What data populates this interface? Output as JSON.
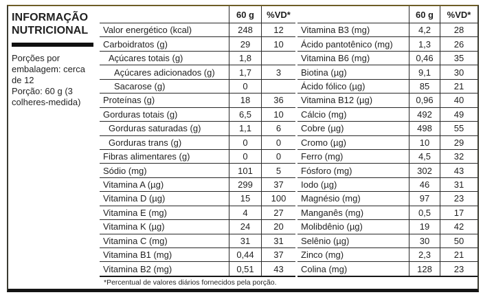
{
  "header": {
    "title_line1": "INFORMAÇÃO",
    "title_line2": "NUTRICIONAL",
    "servings_text": "Porções por embalagem: cerca de 12",
    "portion_text": "Porção: 60 g (3 colheres-medida)"
  },
  "footnote": "*Percentual de valores diários fornecidos pela porção.",
  "left_table": {
    "columns": {
      "amount": "60 g",
      "dv": "%VD*"
    },
    "rows": [
      {
        "label": "Valor energético (kcal)",
        "indent": 0,
        "amount": "248",
        "dv": "12"
      },
      {
        "label": "Carboidratos (g)",
        "indent": 0,
        "amount": "29",
        "dv": "10"
      },
      {
        "label": "Açúcares totais (g)",
        "indent": 1,
        "amount": "1,8",
        "dv": ""
      },
      {
        "label": "Açúcares adicionados (g)",
        "indent": 2,
        "amount": "1,7",
        "dv": "3"
      },
      {
        "label": "Sacarose (g)",
        "indent": 2,
        "amount": "0",
        "dv": ""
      },
      {
        "label": "Proteínas (g)",
        "indent": 0,
        "amount": "18",
        "dv": "36"
      },
      {
        "label": "Gorduras totais (g)",
        "indent": 0,
        "amount": "6,5",
        "dv": "10"
      },
      {
        "label": "Gorduras saturadas (g)",
        "indent": 1,
        "amount": "1,1",
        "dv": "6"
      },
      {
        "label": "Gorduras trans (g)",
        "indent": 1,
        "amount": "0",
        "dv": "0"
      },
      {
        "label": "Fibras alimentares (g)",
        "indent": 0,
        "amount": "0",
        "dv": "0"
      },
      {
        "label": "Sódio (mg)",
        "indent": 0,
        "amount": "101",
        "dv": "5"
      },
      {
        "label": "Vitamina A (µg)",
        "indent": 0,
        "amount": "299",
        "dv": "37"
      },
      {
        "label": "Vitamina D (µg)",
        "indent": 0,
        "amount": "15",
        "dv": "100"
      },
      {
        "label": "Vitamina E (mg)",
        "indent": 0,
        "amount": "4",
        "dv": "27"
      },
      {
        "label": "Vitamina K (µg)",
        "indent": 0,
        "amount": "24",
        "dv": "20"
      },
      {
        "label": "Vitamina C (mg)",
        "indent": 0,
        "amount": "31",
        "dv": "31"
      },
      {
        "label": "Vitamina B1 (mg)",
        "indent": 0,
        "amount": "0,44",
        "dv": "37"
      },
      {
        "label": "Vitamina B2 (mg)",
        "indent": 0,
        "amount": "0,51",
        "dv": "43"
      }
    ]
  },
  "right_table": {
    "columns": {
      "amount": "60 g",
      "dv": "%VD*"
    },
    "rows": [
      {
        "label": "Vitamina B3 (mg)",
        "indent": 0,
        "amount": "4,2",
        "dv": "28"
      },
      {
        "label": "Ácido pantotênico (mg)",
        "indent": 0,
        "amount": "1,3",
        "dv": "26"
      },
      {
        "label": "Vitamina B6 (mg)",
        "indent": 0,
        "amount": "0,46",
        "dv": "35"
      },
      {
        "label": "Biotina (µg)",
        "indent": 0,
        "amount": "9,1",
        "dv": "30"
      },
      {
        "label": "Ácido fólico (µg)",
        "indent": 0,
        "amount": "85",
        "dv": "21"
      },
      {
        "label": "Vitamina B12 (µg)",
        "indent": 0,
        "amount": "0,96",
        "dv": "40"
      },
      {
        "label": "Cálcio (mg)",
        "indent": 0,
        "amount": "492",
        "dv": "49"
      },
      {
        "label": "Cobre (µg)",
        "indent": 0,
        "amount": "498",
        "dv": "55"
      },
      {
        "label": "Cromo (µg)",
        "indent": 0,
        "amount": "10",
        "dv": "29"
      },
      {
        "label": "Ferro (mg)",
        "indent": 0,
        "amount": "4,5",
        "dv": "32"
      },
      {
        "label": "Fósforo (mg)",
        "indent": 0,
        "amount": "302",
        "dv": "43"
      },
      {
        "label": "Iodo (µg)",
        "indent": 0,
        "amount": "46",
        "dv": "31"
      },
      {
        "label": "Magnésio (mg)",
        "indent": 0,
        "amount": "97",
        "dv": "23"
      },
      {
        "label": "Manganês (mg)",
        "indent": 0,
        "amount": "0,5",
        "dv": "17"
      },
      {
        "label": "Molibdênio (µg)",
        "indent": 0,
        "amount": "19",
        "dv": "42"
      },
      {
        "label": "Selênio (µg)",
        "indent": 0,
        "amount": "30",
        "dv": "50"
      },
      {
        "label": "Zinco (mg)",
        "indent": 0,
        "amount": "2,3",
        "dv": "21"
      },
      {
        "label": "Colina (mg)",
        "indent": 0,
        "amount": "128",
        "dv": "23"
      }
    ]
  }
}
